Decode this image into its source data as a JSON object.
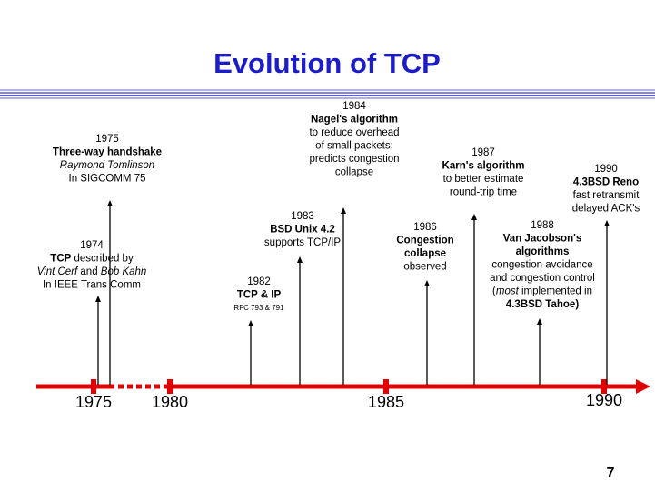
{
  "title": "Evolution of TCP",
  "axis_labels": [
    "1975",
    "1980",
    "1985",
    "1990"
  ],
  "events": [
    {
      "lines": [
        "1975",
        {
          "text": "Three-way handshake",
          "style": "bold"
        },
        {
          "text": "Raymond Tomlinson",
          "style": "italic"
        },
        "In SIGCOMM 75"
      ]
    },
    {
      "lines": [
        "1974",
        [
          {
            "text": "TCP",
            "style": "bold"
          },
          " described by"
        ],
        [
          {
            "text": "Vint Cerf",
            "style": "italic"
          },
          " and ",
          {
            "text": "Bob Kahn",
            "style": "italic"
          }
        ],
        "In IEEE Trans Comm"
      ]
    },
    {
      "lines": [
        "1982",
        {
          "text": "TCP & IP",
          "style": "bold"
        },
        {
          "text": "RFC 793 & 791",
          "style": "small"
        }
      ]
    },
    {
      "lines": [
        "1983",
        {
          "text": "BSD Unix 4.2",
          "style": "bold"
        },
        "supports TCP/IP"
      ]
    },
    {
      "lines": [
        "1984",
        {
          "text": "Nagel's algorithm",
          "style": "bold"
        },
        "to reduce overhead",
        "of small packets;",
        "predicts congestion",
        "collapse"
      ]
    },
    {
      "lines": [
        "1986",
        {
          "text": "Congestion",
          "style": "bold"
        },
        {
          "text": "collapse",
          "style": "bold"
        },
        "observed"
      ]
    },
    {
      "lines": [
        "1987",
        {
          "text": "Karn's algorithm",
          "style": "bold"
        },
        "to better estimate",
        "round-trip time"
      ]
    },
    {
      "lines": [
        "1988",
        {
          "text": "Van Jacobson's",
          "style": "bold"
        },
        {
          "text": "algorithms",
          "style": "bold"
        },
        "congestion avoidance",
        "and congestion control",
        [
          "(",
          {
            "text": "most",
            "style": "italic"
          },
          " implemented in"
        ],
        {
          "text": "4.3BSD Tahoe)",
          "style": "bold"
        }
      ]
    },
    {
      "lines": [
        "1990",
        {
          "text": "4.3BSD Reno",
          "style": "bold"
        },
        "fast retransmit",
        "delayed ACK's"
      ]
    }
  ],
  "page_number": "7"
}
